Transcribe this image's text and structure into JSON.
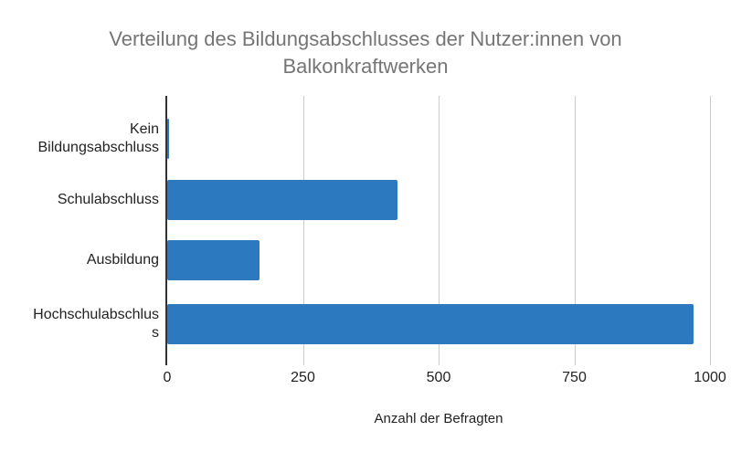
{
  "chart_data": {
    "type": "bar",
    "orientation": "horizontal",
    "title": "Verteilung des Bildungsabschlusses der Nutzer:innen von Balkonkraftwerken",
    "title_display": "Verteilung des Bildungsabschlusses der Nutzer:innen von\nBalkonkraftwerken",
    "categories": [
      "Kein Bildungsabschluss",
      "Schulabschluss",
      "Ausbildung",
      "Hochschulabschluss"
    ],
    "category_display_lines": [
      [
        "Kein",
        "Bildungsabschluss"
      ],
      [
        "Schulabschluss"
      ],
      [
        "Ausbildung"
      ],
      [
        "Hochschulabschlus",
        "s"
      ]
    ],
    "values": [
      3,
      425,
      170,
      970
    ],
    "xlabel": "Anzahl der Befragten",
    "ylabel": "",
    "xlim": [
      0,
      1000
    ],
    "x_ticks": [
      0,
      250,
      500,
      750,
      1000
    ],
    "x_tick_labels": [
      "0",
      "250",
      "500",
      "750",
      "1000"
    ],
    "grid": true,
    "legend": "none"
  },
  "colors": {
    "bar": "#2d79c0",
    "title_text": "#757575",
    "label_text": "#222222",
    "gridline": "#cccccc",
    "axis_line": "#333333",
    "background": "#ffffff"
  }
}
